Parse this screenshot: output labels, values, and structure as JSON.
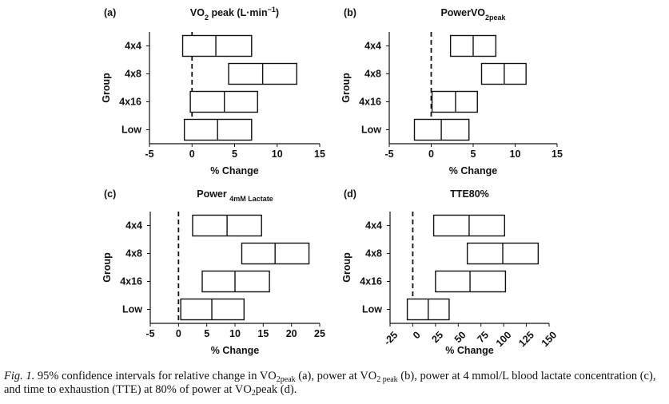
{
  "chart_data": [
    {
      "type": "interval",
      "panel_label": "(a)",
      "title": [
        {
          "text": "VO",
          "style": "normal"
        },
        {
          "text": "2",
          "style": "sub"
        },
        {
          "text": " peak (L·min",
          "style": "normal"
        },
        {
          "text": "−1",
          "style": "sup"
        },
        {
          "text": ")",
          "style": "normal"
        }
      ],
      "xlabel": "% Change",
      "ylabel": "Group",
      "categories": [
        "4x4",
        "4x8",
        "4x16",
        "Low"
      ],
      "lower": [
        -1.1,
        4.3,
        -0.2,
        -0.9
      ],
      "center": [
        2.8,
        8.3,
        3.8,
        3.0
      ],
      "upper": [
        7.0,
        12.3,
        7.7,
        7.0
      ],
      "xlim": [
        -5,
        15
      ],
      "xticks": [
        -5,
        0,
        5,
        10,
        15
      ],
      "refline": 0
    },
    {
      "type": "interval",
      "panel_label": "(b)",
      "title": [
        {
          "text": "PowerVO",
          "style": "normal"
        },
        {
          "text": "2peak",
          "style": "sub"
        }
      ],
      "xlabel": "% Change",
      "ylabel": "Group",
      "categories": [
        "4x4",
        "4x8",
        "4x16",
        "Low"
      ],
      "lower": [
        2.3,
        6.0,
        0.1,
        -2.0
      ],
      "center": [
        5.0,
        8.7,
        2.9,
        1.2
      ],
      "upper": [
        7.7,
        11.3,
        5.5,
        4.5
      ],
      "xlim": [
        -5,
        15
      ],
      "xticks": [
        -5,
        0,
        5,
        10,
        15
      ],
      "refline": 0
    },
    {
      "type": "interval",
      "panel_label": "(c)",
      "title": [
        {
          "text": "Power ",
          "style": "normal"
        },
        {
          "text": "4mM Lactate",
          "style": "sub"
        }
      ],
      "xlabel": "% Change",
      "ylabel": "Group",
      "categories": [
        "4x4",
        "4x8",
        "4x16",
        "Low"
      ],
      "lower": [
        2.5,
        11.2,
        4.2,
        0.4
      ],
      "center": [
        8.6,
        17.1,
        10.0,
        5.9
      ],
      "upper": [
        14.7,
        23.1,
        16.1,
        11.6
      ],
      "xlim": [
        -5,
        25
      ],
      "xticks": [
        -5,
        0,
        5,
        10,
        15,
        20,
        25
      ],
      "refline": 0
    },
    {
      "type": "interval",
      "panel_label": "(d)",
      "title": [
        {
          "text": "TTE80%",
          "style": "normal"
        }
      ],
      "xlabel": "% Change",
      "ylabel": "Group",
      "categories": [
        "4x4",
        "4x8",
        "4x16",
        "Low"
      ],
      "lower": [
        23,
        60,
        25,
        -6
      ],
      "center": [
        62,
        99,
        63,
        17
      ],
      "upper": [
        101,
        138,
        102,
        40
      ],
      "xlim": [
        -25,
        150
      ],
      "xticks": [
        -25,
        0,
        25,
        50,
        75,
        100,
        125,
        150
      ],
      "xtick_rotation": -45,
      "refline": 0
    }
  ],
  "caption": [
    {
      "text": "Fig. 1.",
      "style": "italic"
    },
    {
      "text": " 95% confidence intervals for relative change in VO",
      "style": "normal"
    },
    {
      "text": "2peak",
      "style": "sub"
    },
    {
      "text": " (a), power at VO",
      "style": "normal"
    },
    {
      "text": "2 peak",
      "style": "sub"
    },
    {
      "text": " (b), power at 4 mmol/L blood lactate concentration (c), and time to exhaustion (TTE) at 80% of power at VO",
      "style": "normal"
    },
    {
      "text": "2",
      "style": "sub"
    },
    {
      "text": "peak (d).",
      "style": "normal"
    }
  ]
}
